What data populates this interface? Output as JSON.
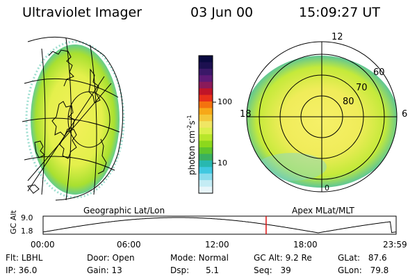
{
  "header": {
    "instrument": "Ultraviolet Imager",
    "date": "03 Jun 00",
    "time": "15:09:27 UT"
  },
  "panels": {
    "left_caption": "Geographic Lat/Lon",
    "right_caption": "Apex MLat/MLT"
  },
  "colorbar": {
    "title": "photon cm",
    "title_exp1": "-2",
    "title_mid": "s",
    "title_exp2": "-1",
    "tick_high": "100",
    "tick_low": "10",
    "colors": [
      "#0a0a40",
      "#1c1050",
      "#3a1868",
      "#5e1a76",
      "#8a1a5a",
      "#c01428",
      "#e8301a",
      "#f4720e",
      "#f7a818",
      "#f4c83a",
      "#f0e664",
      "#dbef4c",
      "#b8e62a",
      "#8cd81c",
      "#5ec42e",
      "#3ab060",
      "#28b8b0",
      "#40c8e0",
      "#8adcec",
      "#c4ecf4",
      "#e8f6fa"
    ]
  },
  "polar_labels": {
    "mlt_12": "12",
    "mlt_18": "18",
    "mlt_6": "6",
    "mlt_0": "0",
    "lat_60": "60",
    "lat_70": "70",
    "lat_80": "80"
  },
  "altitude_plot": {
    "ylabel": "GC Alt",
    "ymax": "9.0",
    "ymin": "1.8",
    "xticks": [
      "00:00",
      "06:00",
      "12:00",
      "18:00",
      "23:59"
    ],
    "current_time_hours": 15.16,
    "marker_color": "#dd1010"
  },
  "status": {
    "filter_label": "Flt:",
    "filter_value": "LBHL",
    "door_label": "Door:",
    "door_value": "Open",
    "mode_label": "Mode:",
    "mode_value": "Normal",
    "gcalt_label": "GC Alt:",
    "gcalt_value": "9.2 Re",
    "glat_label": "GLat:",
    "glat_value": "87.6",
    "ip_label": "IP:",
    "ip_value": "36.0",
    "gain_label": "Gain:",
    "gain_value": "13",
    "dsp_label": "Dsp:",
    "dsp_value": "5.1",
    "seq_label": "Seq:",
    "seq_value": "39",
    "glon_label": "GLon:",
    "glon_value": "79.8"
  }
}
